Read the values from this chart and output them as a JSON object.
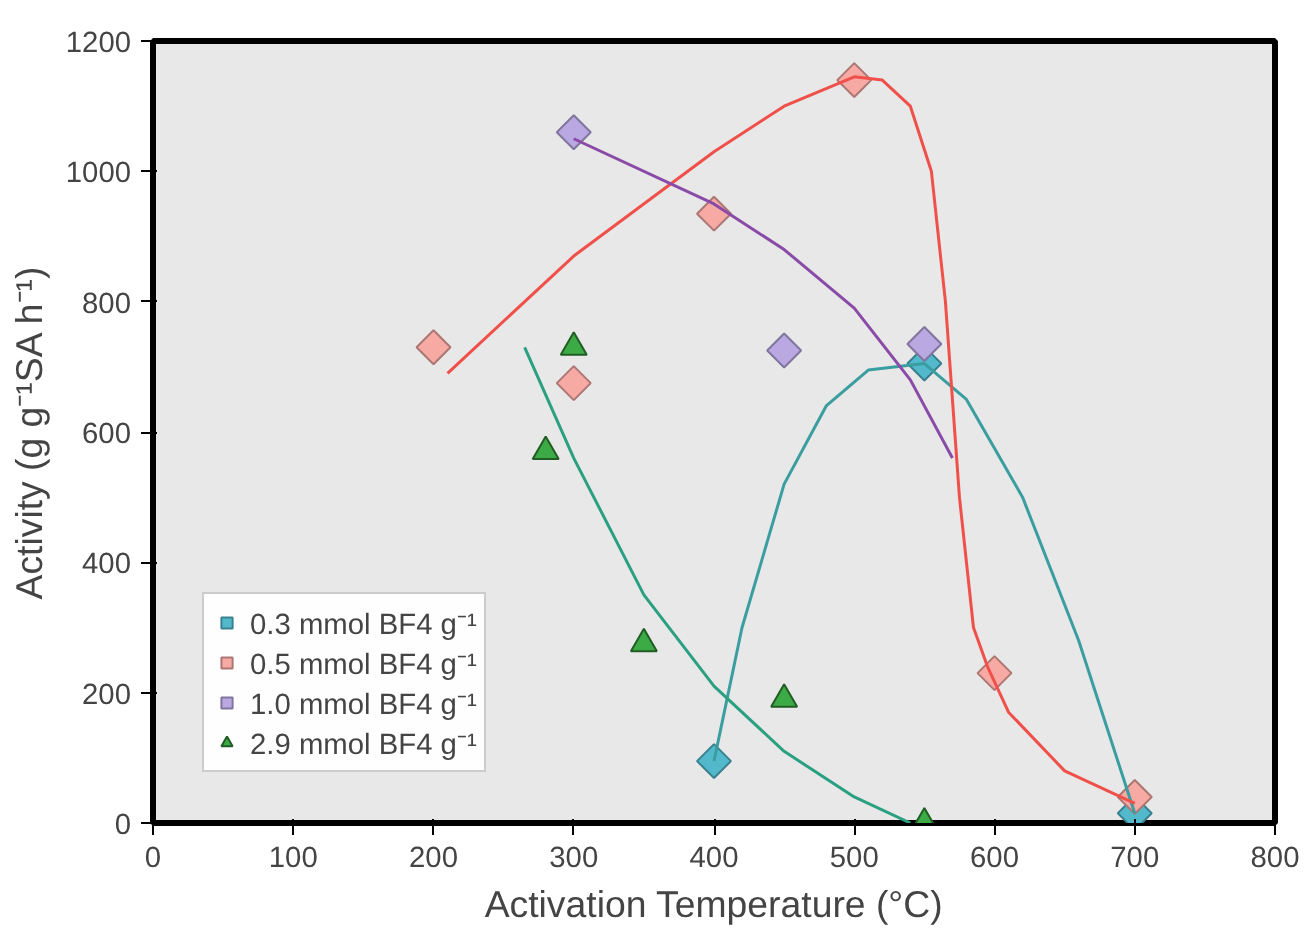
{
  "chart_data": {
    "type": "scatter",
    "xlabel": "Activation Temperature (°C)",
    "ylabel": "Activity (g g⁻¹SA h⁻¹)",
    "xlim": [
      0,
      800
    ],
    "ylim": [
      0,
      1200
    ],
    "xticks": [
      0,
      100,
      200,
      300,
      400,
      500,
      600,
      700,
      800
    ],
    "yticks": [
      0,
      200,
      400,
      600,
      800,
      1000,
      1200
    ],
    "grid": false,
    "legend": "bottom left",
    "marker": "diamond",
    "series": [
      {
        "name": "0.3 mmol BF4 g⁻¹",
        "color": "#52b9cc",
        "x": [
          400,
          550,
          700
        ],
        "values": [
          95,
          705,
          15
        ]
      },
      {
        "name": "0.5 mmol BF4 g⁻¹",
        "color": "#f7aaa4",
        "x": [
          200,
          300,
          400,
          500,
          600,
          700
        ],
        "values": [
          730,
          675,
          935,
          1140,
          230,
          40
        ]
      },
      {
        "name": "1.0 mmol BF4 g⁻¹",
        "color": "#b9a8e2",
        "x": [
          300,
          450,
          550
        ],
        "values": [
          1060,
          725,
          735
        ]
      },
      {
        "name": "2.9 mmol BF4 g⁻¹",
        "color": "#3caa45",
        "marker": "triangle",
        "x": [
          280,
          300,
          350,
          450,
          550
        ],
        "values": [
          570,
          730,
          275,
          190,
          0
        ]
      },
      {
        "type": "line",
        "color": "#3a9ea0",
        "marker": "none",
        "x": [
          400,
          420,
          450,
          480,
          510,
          550,
          580,
          620,
          660,
          700
        ],
        "values": [
          95,
          300,
          520,
          640,
          695,
          705,
          650,
          500,
          280,
          15
        ]
      },
      {
        "type": "line",
        "color": "#f0504a",
        "marker": "none",
        "x": [
          210,
          300,
          400,
          450,
          500,
          520,
          540,
          555,
          565,
          575,
          585,
          595,
          610,
          650,
          700
        ],
        "values": [
          690,
          870,
          1030,
          1100,
          1145,
          1140,
          1100,
          1000,
          800,
          500,
          300,
          240,
          170,
          80,
          30
        ]
      },
      {
        "type": "line",
        "color": "#8a4aa8",
        "marker": "none",
        "x": [
          300,
          400,
          450,
          500,
          540,
          570
        ],
        "values": [
          1050,
          950,
          880,
          790,
          680,
          560
        ]
      },
      {
        "type": "line",
        "color": "#2aa080",
        "marker": "none",
        "x": [
          265,
          300,
          350,
          400,
          450,
          500,
          540
        ],
        "values": [
          730,
          560,
          350,
          210,
          110,
          40,
          0
        ]
      }
    ]
  }
}
